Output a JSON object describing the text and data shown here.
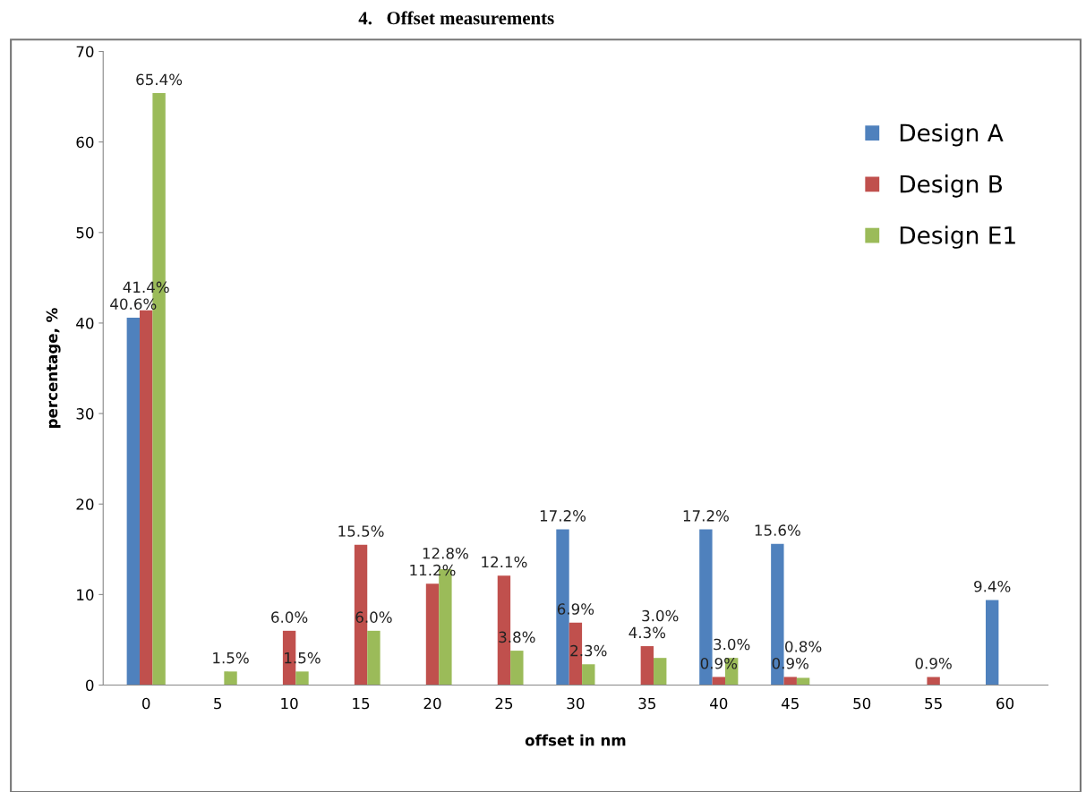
{
  "chart_data": {
    "type": "bar",
    "title": "4.   Offset measurements",
    "xlabel": "offset in nm",
    "ylabel": "percentage, %",
    "categories": [
      "0",
      "5",
      "10",
      "15",
      "20",
      "25",
      "30",
      "35",
      "40",
      "45",
      "50",
      "55",
      "60"
    ],
    "series": [
      {
        "name": "Design A",
        "color": "#4f81bd",
        "values": [
          40.6,
          null,
          null,
          null,
          null,
          null,
          17.2,
          null,
          17.2,
          15.6,
          null,
          null,
          9.4
        ],
        "value_labels": [
          "40.6%",
          null,
          null,
          null,
          null,
          null,
          "17.2%",
          null,
          "17.2%",
          "15.6%",
          null,
          null,
          "9.4%"
        ]
      },
      {
        "name": "Design B",
        "color": "#c0504d",
        "values": [
          41.4,
          null,
          6.0,
          15.5,
          11.2,
          12.1,
          6.9,
          4.3,
          0.9,
          0.9,
          null,
          0.9,
          null
        ],
        "value_labels": [
          "41.4%",
          null,
          "6.0%",
          "15.5%",
          "11.2%",
          "12.1%",
          "6.9%",
          "4.3%",
          "0.9%",
          "0.9%",
          null,
          "0.9%",
          null
        ]
      },
      {
        "name": "Design E1",
        "color": "#9bbb59",
        "values": [
          65.4,
          1.5,
          1.5,
          6.0,
          12.8,
          3.8,
          2.3,
          3.0,
          3.0,
          0.8,
          null,
          null,
          null
        ],
        "value_labels": [
          "65.4%",
          "1.5%",
          "1.5%",
          "6.0%",
          "12.8%",
          "3.8%",
          "2.3%",
          "3.0%",
          "3.0%",
          "0.8%",
          null,
          null,
          null
        ]
      }
    ],
    "ylim": [
      0,
      70
    ],
    "yticks": [
      0,
      10,
      20,
      30,
      40,
      50,
      60,
      70
    ],
    "grid": false,
    "legend": "top right"
  }
}
